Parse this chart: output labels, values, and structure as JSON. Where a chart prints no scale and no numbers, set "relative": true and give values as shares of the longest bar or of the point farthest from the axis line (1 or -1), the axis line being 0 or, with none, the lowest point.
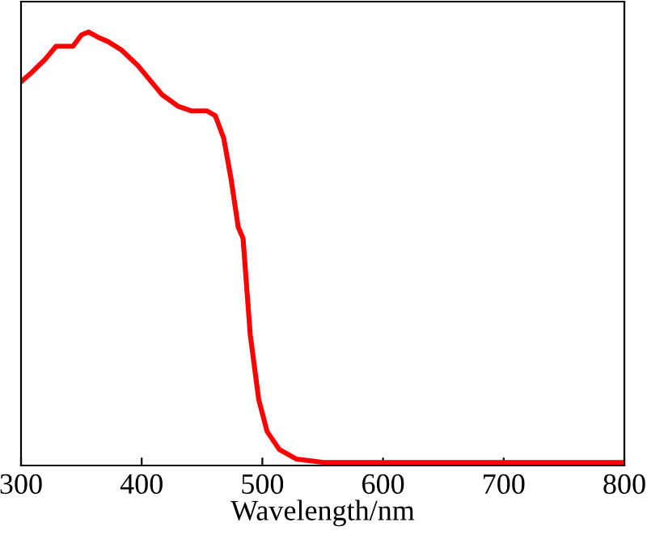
{
  "chart_data": {
    "type": "line",
    "relative": true,
    "xlabel": "Wavelength/nm",
    "xlim": [
      300,
      800
    ],
    "xticks": [
      300,
      400,
      500,
      600,
      700,
      800
    ],
    "grid": false,
    "legend": false,
    "tick_labels": "x",
    "series": [
      {
        "color": "#ff0000",
        "x": [
          300,
          309,
          320,
          329,
          343,
          350,
          356,
          363,
          372,
          383,
          397,
          417,
          430,
          441,
          454,
          461,
          468,
          474,
          480,
          484,
          490,
          497,
          504,
          514,
          528,
          551,
          600,
          700,
          800
        ],
        "values": [
          0.885,
          0.907,
          0.937,
          0.967,
          0.967,
          0.993,
          1.0,
          0.989,
          0.978,
          0.959,
          0.922,
          0.855,
          0.829,
          0.818,
          0.818,
          0.807,
          0.755,
          0.662,
          0.55,
          0.524,
          0.301,
          0.152,
          0.078,
          0.037,
          0.015,
          0.007,
          0.007,
          0.007,
          0.007
        ]
      }
    ]
  }
}
